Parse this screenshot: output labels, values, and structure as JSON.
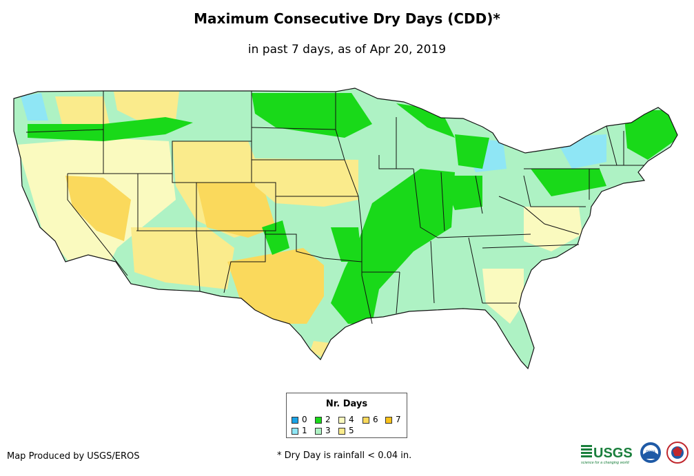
{
  "title": "Maximum Consecutive Dry Days (CDD)*",
  "subtitle": "in past 7 days, as of Apr 20, 2019",
  "legend": {
    "title": "Nr. Days",
    "items": [
      {
        "label": "0",
        "color": "#1aa3e6"
      },
      {
        "label": "1",
        "color": "#8fe6f5"
      },
      {
        "label": "2",
        "color": "#19d919"
      },
      {
        "label": "3",
        "color": "#aef2c4"
      },
      {
        "label": "4",
        "color": "#fafabf"
      },
      {
        "label": "5",
        "color": "#faeb8c"
      },
      {
        "label": "6",
        "color": "#fad95c"
      },
      {
        "label": "7",
        "color": "#fac21a"
      }
    ]
  },
  "footer": {
    "producer": "Map Produced by USGS/EROS",
    "note": "* Dry Day is rainfall < 0.04 in."
  },
  "logos": {
    "usgs_text": "USGS",
    "usgs_tagline": "science for a changing world",
    "noaa_text": "noaa"
  }
}
